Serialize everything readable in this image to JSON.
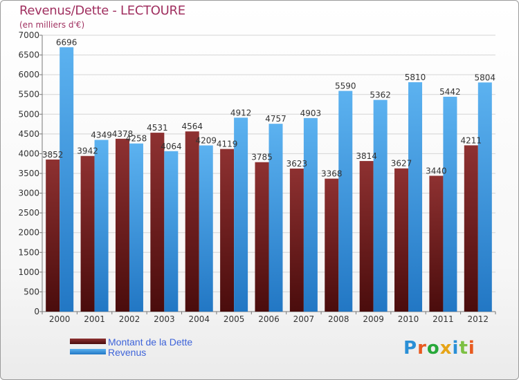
{
  "title": "Revenus/Dette - LECTOURE",
  "subtitle": "(en milliers d'€)",
  "brand": "Proxiti",
  "chart_data": {
    "type": "bar",
    "title": "Revenus/Dette - LECTOURE",
    "subtitle": "(en milliers d'€)",
    "xlabel": "",
    "ylabel": "",
    "ylim": [
      0,
      7000
    ],
    "yticks": [
      0,
      500,
      1000,
      1500,
      2000,
      2500,
      3000,
      3500,
      4000,
      4500,
      5000,
      5500,
      6000,
      6500,
      7000
    ],
    "grid": true,
    "legend_position": "bottom-left",
    "categories": [
      "2000",
      "2001",
      "2002",
      "2003",
      "2004",
      "2005",
      "2006",
      "2007",
      "2008",
      "2009",
      "2010",
      "2011",
      "2012"
    ],
    "series": [
      {
        "name": "Montant de la Dette",
        "color": "#7d2525",
        "values": [
          3852,
          3942,
          4378,
          4531,
          4564,
          4119,
          3785,
          3623,
          3368,
          3814,
          3627,
          3440,
          4211
        ]
      },
      {
        "name": "Revenus",
        "color": "#3f9fe6",
        "values": [
          6696,
          4349,
          4258,
          4064,
          4209,
          4912,
          4757,
          4903,
          5590,
          5362,
          5810,
          5442,
          5804
        ]
      }
    ]
  }
}
